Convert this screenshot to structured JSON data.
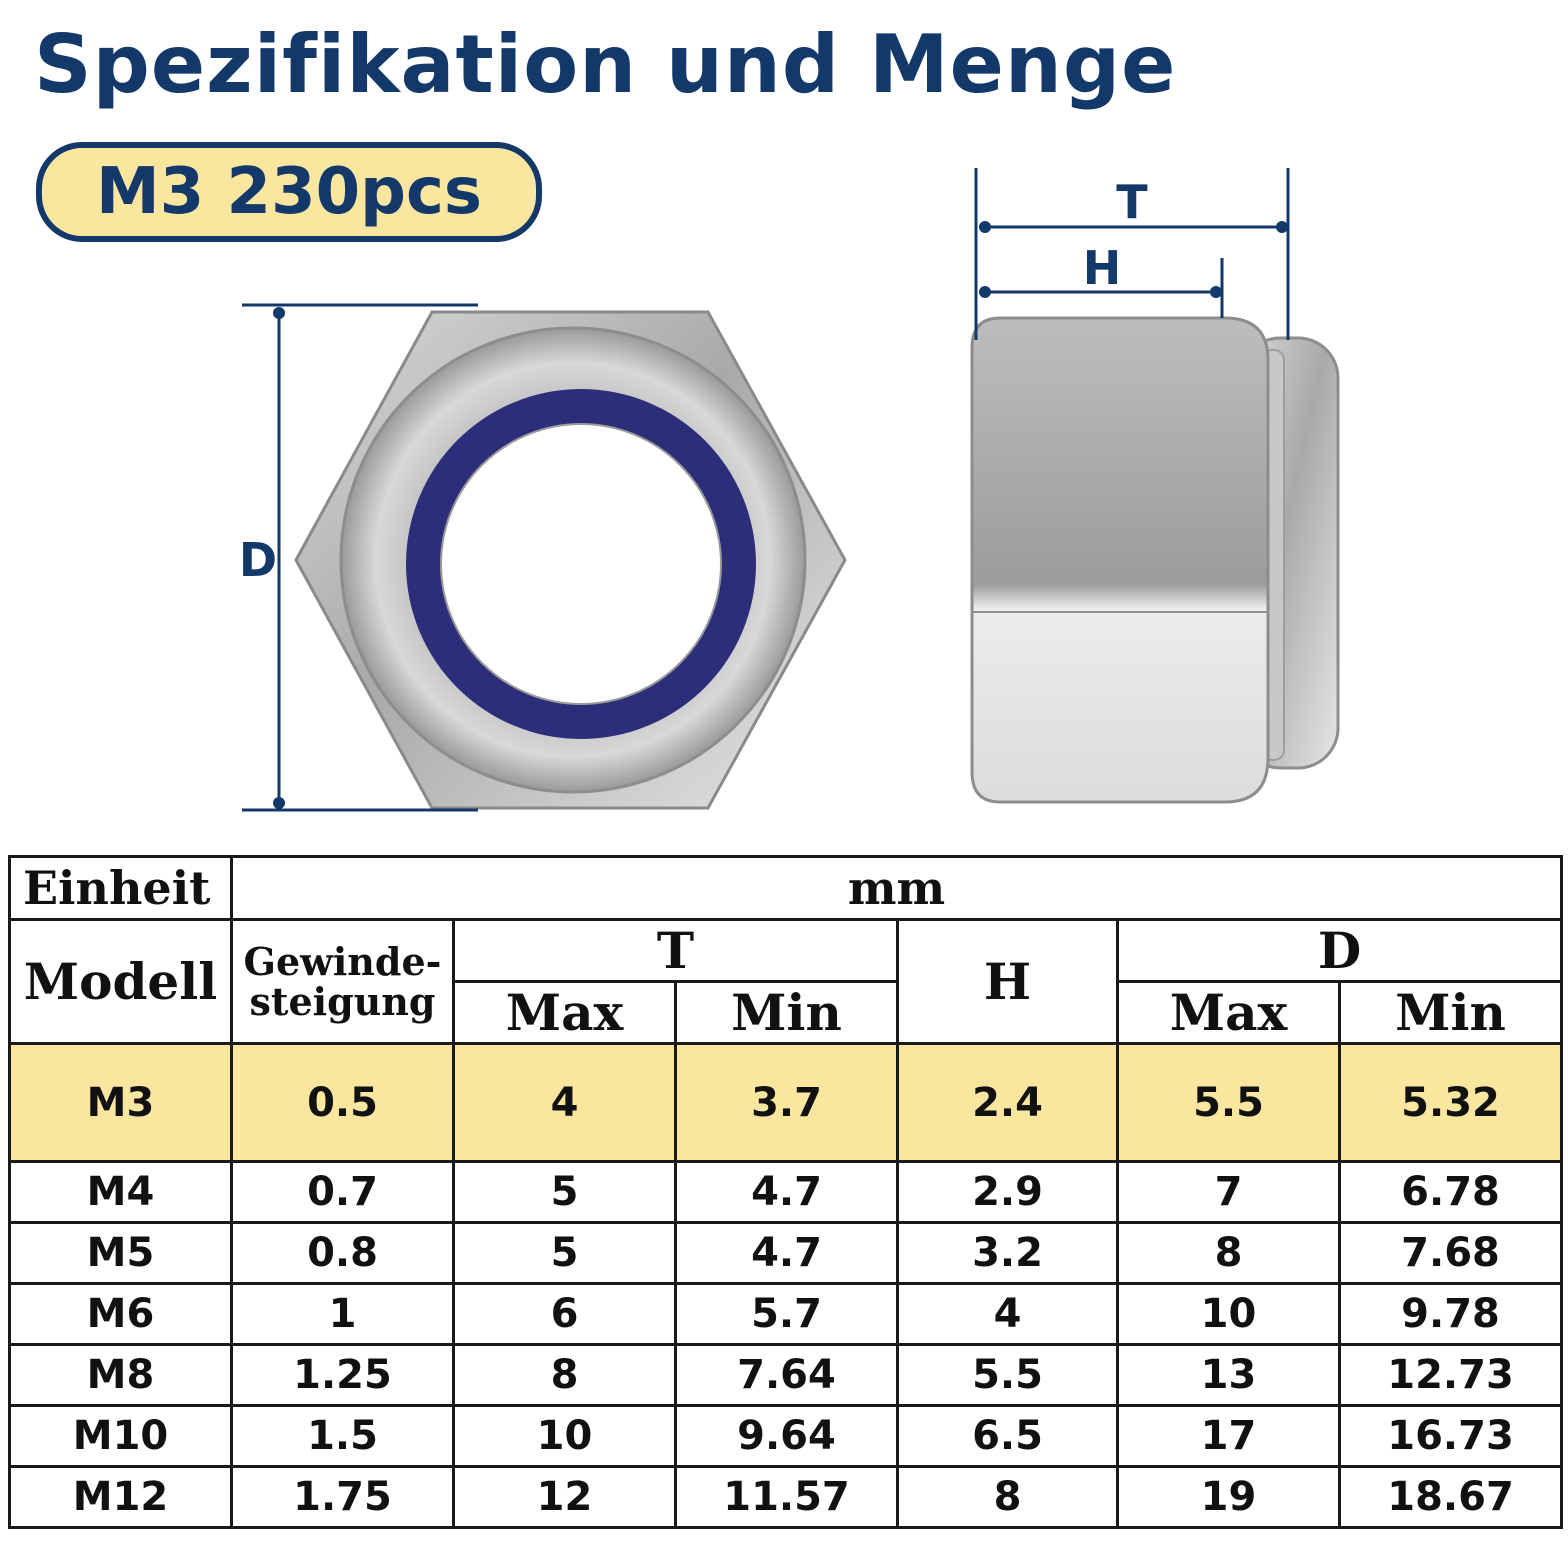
{
  "title": "Spezifikation und Menge",
  "badge": "M3 230pcs",
  "dimension_labels": {
    "d": "D",
    "t": "T",
    "h": "H"
  },
  "colors": {
    "accent": "#13386a",
    "highlight": "#fbe6a0",
    "nylon_ring": "#2d2e7a"
  },
  "table": {
    "unit_label": "Einheit",
    "unit_value": "mm",
    "col_model": "Modell",
    "col_pitch_line1": "Gewinde-",
    "col_pitch_line2": "steigung",
    "col_t": "T",
    "col_h": "H",
    "col_d": "D",
    "sub_max": "Max",
    "sub_min": "Min",
    "rows": [
      {
        "model": "M3",
        "pitch": "0.5",
        "t_max": "4",
        "t_min": "3.7",
        "h": "2.4",
        "d_max": "5.5",
        "d_min": "5.32"
      },
      {
        "model": "M4",
        "pitch": "0.7",
        "t_max": "5",
        "t_min": "4.7",
        "h": "2.9",
        "d_max": "7",
        "d_min": "6.78"
      },
      {
        "model": "M5",
        "pitch": "0.8",
        "t_max": "5",
        "t_min": "4.7",
        "h": "3.2",
        "d_max": "8",
        "d_min": "7.68"
      },
      {
        "model": "M6",
        "pitch": "1",
        "t_max": "6",
        "t_min": "5.7",
        "h": "4",
        "d_max": "10",
        "d_min": "9.78"
      },
      {
        "model": "M8",
        "pitch": "1.25",
        "t_max": "8",
        "t_min": "7.64",
        "h": "5.5",
        "d_max": "13",
        "d_min": "12.73"
      },
      {
        "model": "M10",
        "pitch": "1.5",
        "t_max": "10",
        "t_min": "9.64",
        "h": "6.5",
        "d_max": "17",
        "d_min": "16.73"
      },
      {
        "model": "M12",
        "pitch": "1.75",
        "t_max": "12",
        "t_min": "11.57",
        "h": "8",
        "d_max": "19",
        "d_min": "18.67"
      }
    ]
  }
}
